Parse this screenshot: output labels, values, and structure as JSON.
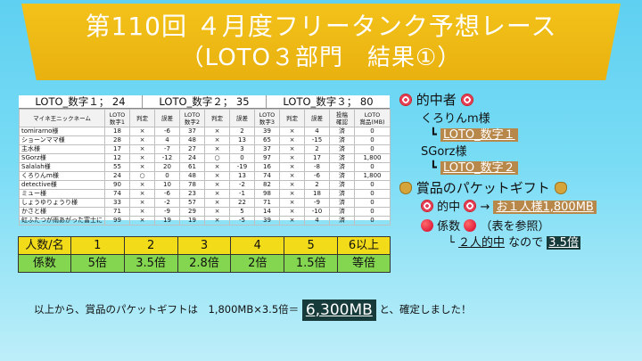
{
  "banner": {
    "line1": "第110回 ４月度フリータンク予想レース",
    "line2": "（LOTO３部門　結果①）"
  },
  "scoreboard": {
    "digits": [
      "LOTO_数字１； 24",
      "LOTO_数字２； 35",
      "LOTO_数字３； 80"
    ],
    "columns": [
      "マイネ王ニックネーム",
      "LOTO\n数字1",
      "判定",
      "誤差",
      "LOTO\n数字2",
      "判定",
      "誤差",
      "LOTO\n数字3",
      "判定",
      "誤差",
      "投稿\n確認",
      "LOTO\n賞品(MB)"
    ],
    "rows": [
      [
        "tomirarno様",
        "18",
        "×",
        "-6",
        "37",
        "×",
        "2",
        "39",
        "×",
        "4",
        "済",
        "0"
      ],
      [
        "ショーンママ様",
        "28",
        "×",
        "4",
        "48",
        "×",
        "13",
        "65",
        "×",
        "-15",
        "済",
        "0"
      ],
      [
        "主水様",
        "17",
        "×",
        "-7",
        "27",
        "×",
        "3",
        "37",
        "×",
        "2",
        "済",
        "0"
      ],
      [
        "SGorz様",
        "12",
        "×",
        "-12",
        "24",
        "○",
        "0",
        "97",
        "×",
        "17",
        "済",
        "1,800"
      ],
      [
        "Salalah様",
        "55",
        "×",
        "20",
        "61",
        "×",
        "-19",
        "16",
        "×",
        "-8",
        "済",
        "0"
      ],
      [
        "くろりんm様",
        "24",
        "○",
        "0",
        "48",
        "×",
        "13",
        "74",
        "×",
        "-6",
        "済",
        "1,800"
      ],
      [
        "detective様",
        "90",
        "×",
        "10",
        "78",
        "×",
        "-2",
        "82",
        "×",
        "2",
        "済",
        "0"
      ],
      [
        "ミュー様",
        "74",
        "×",
        "-6",
        "23",
        "×",
        "-1",
        "98",
        "×",
        "18",
        "済",
        "0"
      ],
      [
        "しょうゆりょうり様",
        "33",
        "×",
        "-2",
        "57",
        "×",
        "22",
        "71",
        "×",
        "-9",
        "済",
        "0"
      ],
      [
        "かさと様",
        "71",
        "×",
        "-9",
        "29",
        "×",
        "5",
        "14",
        "×",
        "-10",
        "済",
        "0"
      ],
      [
        "虹ふたつが雨あがった富士に 様",
        "99",
        "×",
        "19",
        "19",
        "×",
        "-5",
        "39",
        "×",
        "4",
        "済",
        "0"
      ]
    ]
  },
  "multiplier": {
    "header_label": "人数/名",
    "counts": [
      "1",
      "2",
      "3",
      "4",
      "5",
      "6以上"
    ],
    "factor_label": "係数",
    "factors": [
      "5倍",
      "3.5倍",
      "2.8倍",
      "2倍",
      "1.5倍",
      "等倍"
    ]
  },
  "winners": {
    "title": "的中者",
    "winner1": "くろりんm様",
    "winner1_category": "LOTO_数字１",
    "winner2": "SGorz様",
    "winner2_category": "LOTO_数字２",
    "prize_title": "賞品のパケットギフト",
    "hit_label": "的中",
    "arrow": "→",
    "hit_value": "お１人様1,800MB",
    "coef_label": "係数",
    "coef_note": "（表を参照）",
    "coef_detail_prefix": "└",
    "coef_detail_ul": "２人的中",
    "coef_detail_mid": "なので",
    "coef_value": "3.5倍"
  },
  "bottom": {
    "prefix": "以上から、賞品のパケットギフトは　1,800MB×3.5倍＝",
    "total": "6,300MB",
    "suffix": "と、確定しました！"
  },
  "colors": {
    "banner": "#efbb16",
    "background": "#6fd8f3",
    "multiplier_row1": "#f2dc1a",
    "multiplier_row2": "#84d54f",
    "highlight_brown": "#b8874a",
    "highlight_dark": "#173a3a"
  }
}
